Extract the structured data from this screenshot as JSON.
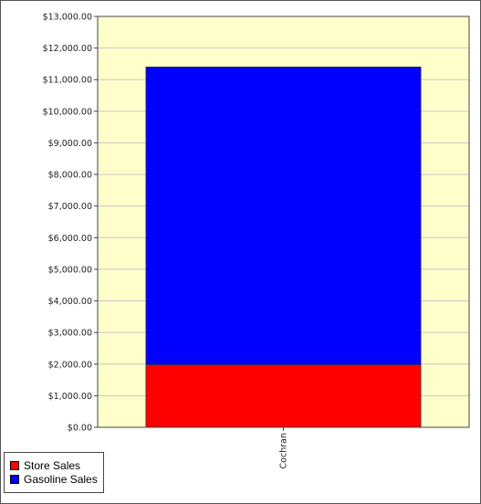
{
  "chart_data": {
    "type": "bar",
    "stacked": true,
    "categories": [
      "Cochran"
    ],
    "series": [
      {
        "name": "Store Sales",
        "values": [
          1980
        ],
        "color": "#ff0000"
      },
      {
        "name": "Gasoline Sales",
        "values": [
          9420
        ],
        "color": "#0000ff"
      }
    ],
    "ylim": [
      0,
      13000
    ],
    "ytick_step": 1000,
    "ytick_labels": [
      "$0.00",
      "$1,000.00",
      "$2,000.00",
      "$3,000.00",
      "$4,000.00",
      "$5,000.00",
      "$6,000.00",
      "$7,000.00",
      "$8,000.00",
      "$9,000.00",
      "$10,000.00",
      "$11,000.00",
      "$12,000.00",
      "$13,000.00"
    ],
    "plot_background": "#ffffcc",
    "grid": true,
    "legend_position": "bottom-left"
  }
}
